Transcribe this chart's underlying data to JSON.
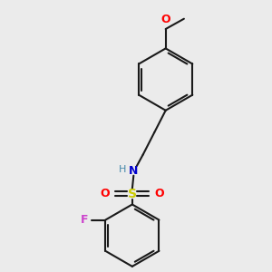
{
  "background_color": "#ebebeb",
  "line_color": "#1a1a1a",
  "bond_width": 1.5,
  "atom_labels": {
    "O_methoxy": {
      "text": "O",
      "color": "#ff0000",
      "fontsize": 9
    },
    "N": {
      "text": "N",
      "color": "#0000cc",
      "fontsize": 9
    },
    "H": {
      "text": "H",
      "color": "#4488aa",
      "fontsize": 8
    },
    "S": {
      "text": "S",
      "color": "#cccc00",
      "fontsize": 10
    },
    "O1": {
      "text": "O",
      "color": "#ff0000",
      "fontsize": 9
    },
    "O2": {
      "text": "O",
      "color": "#ff0000",
      "fontsize": 9
    },
    "F": {
      "text": "F",
      "color": "#cc44cc",
      "fontsize": 9
    }
  }
}
